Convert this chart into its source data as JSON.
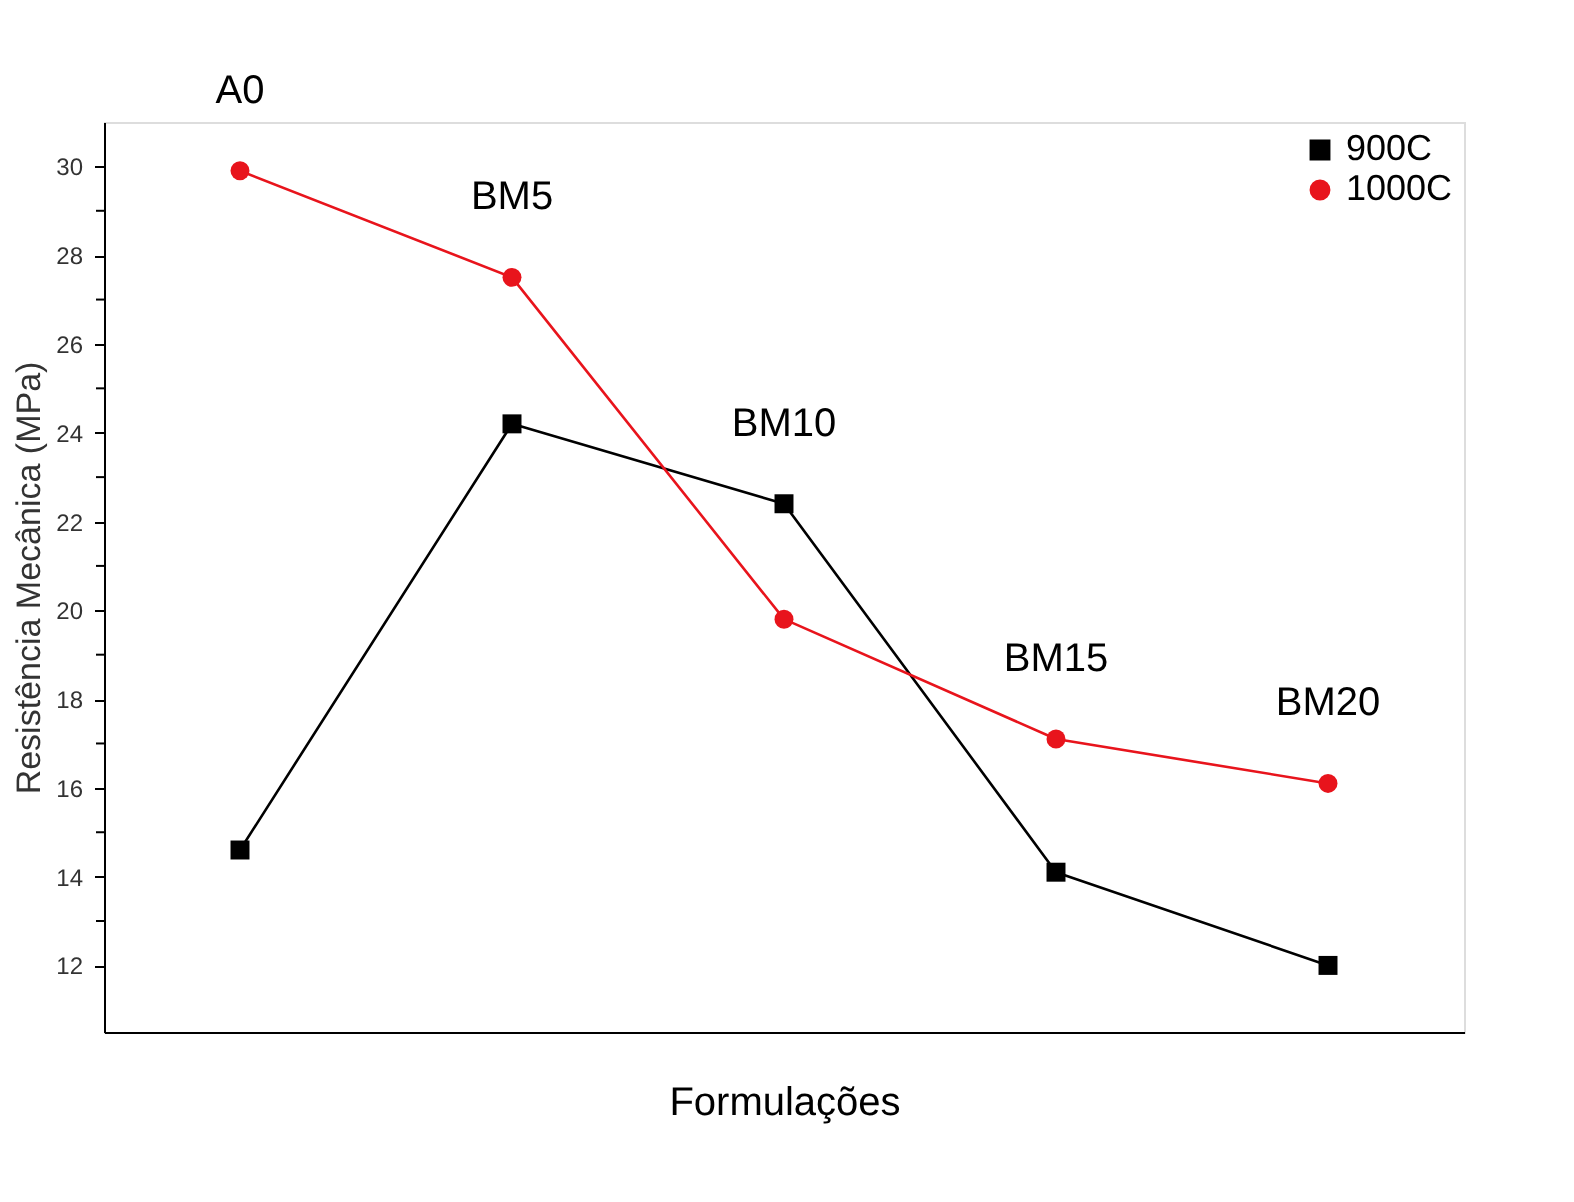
{
  "chart_data": {
    "type": "line",
    "xlabel": "Formulações",
    "ylabel": "Resistência Mecânica (MPa)",
    "categories": [
      "A0",
      "BM5",
      "BM10",
      "BM15",
      "BM20"
    ],
    "series": [
      {
        "name": "900C",
        "color": "#000000",
        "marker": "square",
        "values": [
          14.6,
          24.2,
          22.4,
          14.1,
          12.0
        ]
      },
      {
        "name": "1000C",
        "color": "#e8141c",
        "marker": "circle",
        "values": [
          29.9,
          27.5,
          19.8,
          17.1,
          16.1
        ]
      }
    ],
    "ylim": [
      10.5,
      31
    ],
    "yticks": [
      12,
      {
        "value": 13,
        "label": null
      },
      14,
      {
        "value": 15,
        "label": null
      },
      16,
      {
        "value": 17,
        "label": null
      },
      18,
      {
        "value": 19,
        "label": null
      },
      20,
      {
        "value": 21,
        "label": null
      },
      22,
      {
        "value": 23,
        "label": null
      },
      24,
      {
        "value": 25,
        "label": null
      },
      26,
      {
        "value": 27,
        "label": null
      },
      28,
      {
        "value": 29,
        "label": null
      },
      30
    ],
    "grid": false,
    "legend": "top right",
    "line_style": "solid"
  }
}
